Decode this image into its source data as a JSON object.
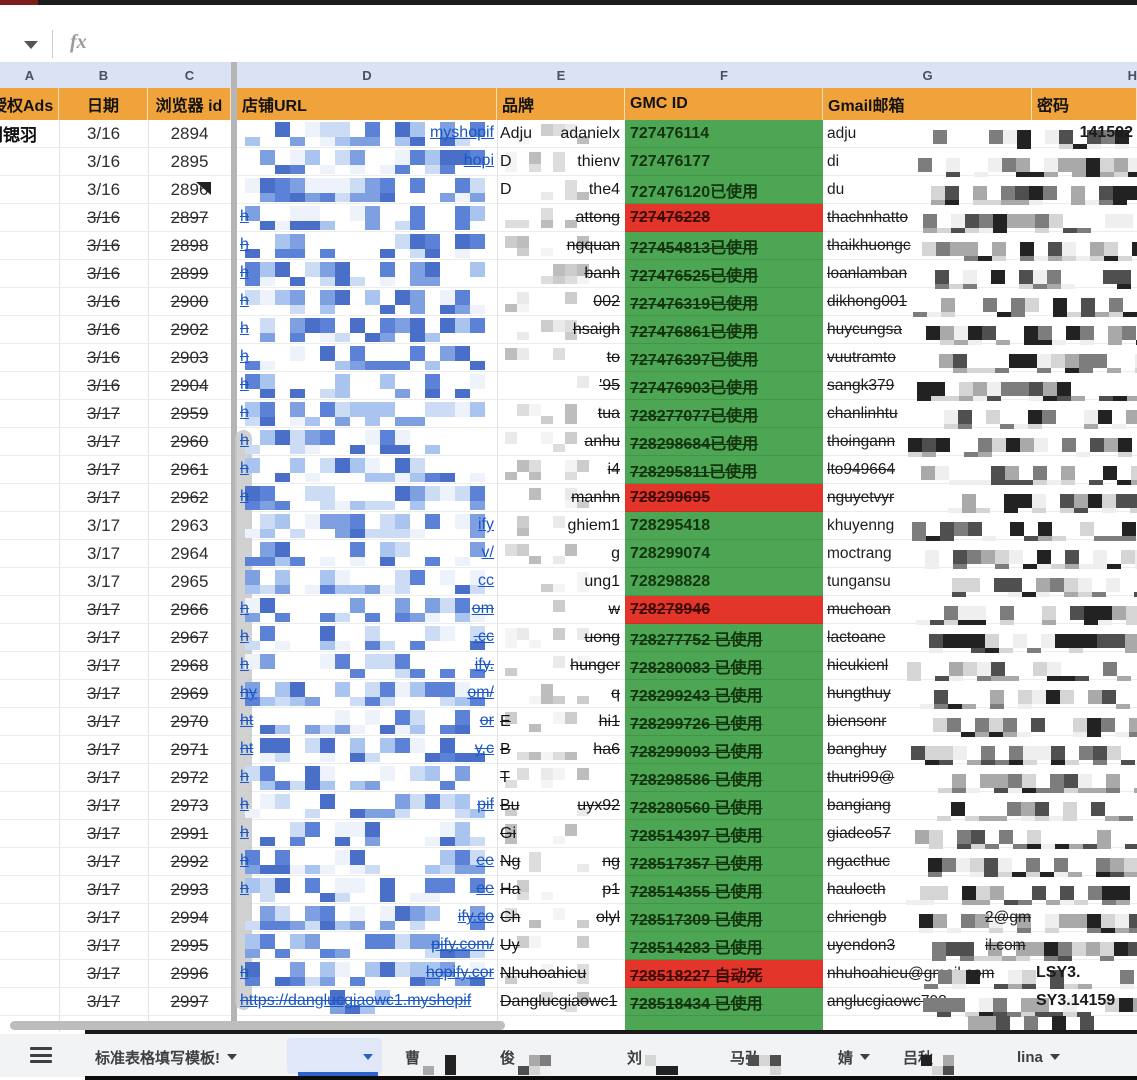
{
  "app": {
    "formula_bar": {
      "fx_label": "fx"
    }
  },
  "colors": {
    "header_orange": "#F1A33B",
    "gmc_green": "#4CA653",
    "gmc_red": "#E4352B",
    "link_blue": "#1a56c4",
    "column_header_blue": "#dbe2f4"
  },
  "sheet": {
    "column_letters": [
      "A",
      "B",
      "C",
      "D",
      "E",
      "F",
      "G",
      "H"
    ],
    "header_labels": [
      "授权Ads",
      "日期",
      "浏览器 id",
      "店铺URL",
      "品牌",
      "GMC ID",
      "Gmail邮箱",
      "密码"
    ],
    "owner_name": "刘锶羽",
    "rows": [
      {
        "date": "3/16",
        "browser_id": "2894",
        "struck": false,
        "comment": false,
        "url_left": "",
        "url_right": "myshopif",
        "url_full": "",
        "brand_left": "Adju",
        "brand_right": "adanielx",
        "gmc_text": "727476114",
        "gmc_state": "green",
        "gmc_struck": false,
        "gmail": "adju",
        "gmail_mid": "",
        "pwd": "141592"
      },
      {
        "date": "3/16",
        "browser_id": "2895",
        "struck": false,
        "comment": false,
        "url_left": "",
        "url_right": "hopi",
        "url_full": "",
        "brand_left": "D",
        "brand_right": "thienv",
        "gmc_text": "727476177",
        "gmc_state": "green",
        "gmc_struck": false,
        "gmail": "di",
        "gmail_mid": "",
        "pwd": ""
      },
      {
        "date": "3/16",
        "browser_id": "2896",
        "struck": false,
        "comment": true,
        "url_left": "",
        "url_right": "",
        "url_full": "",
        "brand_left": "D",
        "brand_right": "the4",
        "gmc_text": "727476120已使用",
        "gmc_state": "green",
        "gmc_struck": false,
        "gmail": "du",
        "gmail_mid": "",
        "pwd": ""
      },
      {
        "date": "3/16",
        "browser_id": "2897",
        "struck": true,
        "comment": false,
        "url_left": "h",
        "url_right": "",
        "url_full": "",
        "brand_left": "",
        "brand_right": "attong",
        "gmc_text": "727476228",
        "gmc_state": "red",
        "gmc_struck": true,
        "gmail": "thachnhatto",
        "gmail_mid": "",
        "pwd": ""
      },
      {
        "date": "3/16",
        "browser_id": "2898",
        "struck": true,
        "comment": false,
        "url_left": "h",
        "url_right": "",
        "url_full": "",
        "brand_left": "",
        "brand_right": "ngquan",
        "gmc_text": "727454813已使用",
        "gmc_state": "green",
        "gmc_struck": true,
        "gmail": "thaikhuongc",
        "gmail_mid": "",
        "pwd": ""
      },
      {
        "date": "3/16",
        "browser_id": "2899",
        "struck": true,
        "comment": false,
        "url_left": "h",
        "url_right": "",
        "url_full": "",
        "brand_left": "",
        "brand_right": "banh",
        "gmc_text": "727476525已使用",
        "gmc_state": "green",
        "gmc_struck": true,
        "gmail": "loanlamban",
        "gmail_mid": "",
        "pwd": ""
      },
      {
        "date": "3/16",
        "browser_id": "2900",
        "struck": true,
        "comment": false,
        "url_left": "h",
        "url_right": "",
        "url_full": "",
        "brand_left": "",
        "brand_right": "002",
        "gmc_text": "727476319已使用",
        "gmc_state": "green",
        "gmc_struck": true,
        "gmail": "dikhong001",
        "gmail_mid": "",
        "pwd": ""
      },
      {
        "date": "3/16",
        "browser_id": "2902",
        "struck": true,
        "comment": false,
        "url_left": "h",
        "url_right": "",
        "url_full": "",
        "brand_left": "",
        "brand_right": "hsaigh",
        "gmc_text": "727476861已使用",
        "gmc_state": "green",
        "gmc_struck": true,
        "gmail": "huycungsa",
        "gmail_mid": "",
        "pwd": ""
      },
      {
        "date": "3/16",
        "browser_id": "2903",
        "struck": true,
        "comment": false,
        "url_left": "h",
        "url_right": "",
        "url_full": "",
        "brand_left": "",
        "brand_right": "to",
        "gmc_text": "727476397已使用",
        "gmc_state": "green",
        "gmc_struck": true,
        "gmail": "vuutramto",
        "gmail_mid": "",
        "pwd": ""
      },
      {
        "date": "3/16",
        "browser_id": "2904",
        "struck": true,
        "comment": false,
        "url_left": "h",
        "url_right": "",
        "url_full": "",
        "brand_left": "",
        "brand_right": "'95",
        "gmc_text": "727476903已使用",
        "gmc_state": "green",
        "gmc_struck": true,
        "gmail": "sangk379",
        "gmail_mid": "",
        "pwd": ""
      },
      {
        "date": "3/17",
        "browser_id": "2959",
        "struck": true,
        "comment": false,
        "url_left": "h",
        "url_right": "",
        "url_full": "",
        "brand_left": "",
        "brand_right": "tua",
        "gmc_text": "728277077已使用",
        "gmc_state": "green",
        "gmc_struck": true,
        "gmail": "chanlinhtu",
        "gmail_mid": "",
        "pwd": ""
      },
      {
        "date": "3/17",
        "browser_id": "2960",
        "struck": true,
        "comment": false,
        "url_left": "h",
        "url_right": "",
        "url_full": "",
        "brand_left": "",
        "brand_right": "anhu",
        "gmc_text": "728298684已使用",
        "gmc_state": "green",
        "gmc_struck": true,
        "gmail": "thoingann",
        "gmail_mid": "",
        "pwd": ""
      },
      {
        "date": "3/17",
        "browser_id": "2961",
        "struck": true,
        "comment": false,
        "url_left": "h",
        "url_right": "",
        "url_full": "",
        "brand_left": "",
        "brand_right": "i4",
        "gmc_text": "728295811已使用",
        "gmc_state": "green",
        "gmc_struck": true,
        "gmail": "lto949664",
        "gmail_mid": "",
        "pwd": ""
      },
      {
        "date": "3/17",
        "browser_id": "2962",
        "struck": true,
        "comment": false,
        "url_left": "h",
        "url_right": "",
        "url_full": "",
        "brand_left": "",
        "brand_right": "manhn",
        "gmc_text": "728299695",
        "gmc_state": "red",
        "gmc_struck": true,
        "gmail": "nguyetvyr",
        "gmail_mid": "",
        "pwd": ""
      },
      {
        "date": "3/17",
        "browser_id": "2963",
        "struck": false,
        "comment": false,
        "url_left": "",
        "url_right": "ify",
        "url_full": "",
        "brand_left": "",
        "brand_right": "ghiem1",
        "gmc_text": "728295418",
        "gmc_state": "green",
        "gmc_struck": false,
        "gmail": "khuyenng",
        "gmail_mid": "",
        "pwd": ""
      },
      {
        "date": "3/17",
        "browser_id": "2964",
        "struck": false,
        "comment": false,
        "url_left": "",
        "url_right": "v/",
        "url_full": "",
        "brand_left": "",
        "brand_right": "g",
        "gmc_text": "728299074",
        "gmc_state": "green",
        "gmc_struck": false,
        "gmail": "moctrang",
        "gmail_mid": "",
        "pwd": ""
      },
      {
        "date": "3/17",
        "browser_id": "2965",
        "struck": false,
        "comment": false,
        "url_left": "",
        "url_right": "cc",
        "url_full": "",
        "brand_left": "",
        "brand_right": "ung1",
        "gmc_text": "728298828",
        "gmc_state": "green",
        "gmc_struck": false,
        "gmail": "tungansu",
        "gmail_mid": "",
        "pwd": ""
      },
      {
        "date": "3/17",
        "browser_id": "2966",
        "struck": true,
        "comment": false,
        "url_left": "h",
        "url_right": "om",
        "url_full": "",
        "brand_left": "",
        "brand_right": "w",
        "gmc_text": "728278946",
        "gmc_state": "red",
        "gmc_struck": true,
        "gmail": "muchoan",
        "gmail_mid": "",
        "pwd": ""
      },
      {
        "date": "3/17",
        "browser_id": "2967",
        "struck": true,
        "comment": false,
        "url_left": "h",
        "url_right": ".cc",
        "url_full": "",
        "brand_left": "",
        "brand_right": "uong",
        "gmc_text": "728277752 已使用",
        "gmc_state": "green",
        "gmc_struck": true,
        "gmail": "lactoane",
        "gmail_mid": "",
        "pwd": ""
      },
      {
        "date": "3/17",
        "browser_id": "2968",
        "struck": true,
        "comment": false,
        "url_left": "h",
        "url_right": "ify.",
        "url_full": "",
        "brand_left": "",
        "brand_right": "hunger",
        "gmc_text": "728280083 已使用",
        "gmc_state": "green",
        "gmc_struck": true,
        "gmail": "hieukienl",
        "gmail_mid": "",
        "pwd": ""
      },
      {
        "date": "3/17",
        "browser_id": "2969",
        "struck": true,
        "comment": false,
        "url_left": "hy",
        "url_right": "om/",
        "url_full": "",
        "brand_left": "",
        "brand_right": "q",
        "gmc_text": "728299243 已使用",
        "gmc_state": "green",
        "gmc_struck": true,
        "gmail": "hungthuy",
        "gmail_mid": "",
        "pwd": ""
      },
      {
        "date": "3/17",
        "browser_id": "2970",
        "struck": true,
        "comment": false,
        "url_left": "ht",
        "url_right": "or",
        "url_full": "",
        "brand_left": "E",
        "brand_right": "hi1",
        "gmc_text": "728299726 已使用",
        "gmc_state": "green",
        "gmc_struck": true,
        "gmail": "biensonr",
        "gmail_mid": "",
        "pwd": ""
      },
      {
        "date": "3/17",
        "browser_id": "2971",
        "struck": true,
        "comment": false,
        "url_left": "ht",
        "url_right": "y.c",
        "url_full": "",
        "brand_left": "B",
        "brand_right": "ha6",
        "gmc_text": "728299093 已使用",
        "gmc_state": "green",
        "gmc_struck": true,
        "gmail": "banghuy",
        "gmail_mid": "",
        "pwd": ""
      },
      {
        "date": "3/17",
        "browser_id": "2972",
        "struck": true,
        "comment": false,
        "url_left": "h",
        "url_right": "",
        "url_full": "",
        "brand_left": "T",
        "brand_right": "",
        "gmc_text": "728298586 已使用",
        "gmc_state": "green",
        "gmc_struck": true,
        "gmail": "thutri99@",
        "gmail_mid": "",
        "pwd": ""
      },
      {
        "date": "3/17",
        "browser_id": "2973",
        "struck": true,
        "comment": false,
        "url_left": "h",
        "url_right": "pif",
        "url_full": "",
        "brand_left": "Bu",
        "brand_right": "uyx92",
        "gmc_text": "728280560 已使用",
        "gmc_state": "green",
        "gmc_struck": true,
        "gmail": "bangiang",
        "gmail_mid": "",
        "pwd": ""
      },
      {
        "date": "3/17",
        "browser_id": "2991",
        "struck": true,
        "comment": false,
        "url_left": "h",
        "url_right": "",
        "url_full": "",
        "brand_left": "Gi",
        "brand_right": "",
        "gmc_text": "728514397 已使用",
        "gmc_state": "green",
        "gmc_struck": true,
        "gmail": "giadeo57",
        "gmail_mid": "",
        "pwd": ""
      },
      {
        "date": "3/17",
        "browser_id": "2992",
        "struck": true,
        "comment": false,
        "url_left": "h",
        "url_right": "ee",
        "url_full": "",
        "brand_left": "Ng",
        "brand_right": "ng",
        "gmc_text": "728517357 已使用",
        "gmc_state": "green",
        "gmc_struck": true,
        "gmail": "ngacthuc",
        "gmail_mid": "",
        "pwd": ""
      },
      {
        "date": "3/17",
        "browser_id": "2993",
        "struck": true,
        "comment": false,
        "url_left": "h",
        "url_right": "ee",
        "url_full": "",
        "brand_left": "Ha",
        "brand_right": "p1",
        "gmc_text": "728514355 已使用",
        "gmc_state": "green",
        "gmc_struck": true,
        "gmail": "haulocth",
        "gmail_mid": "",
        "pwd": ""
      },
      {
        "date": "3/17",
        "browser_id": "2994",
        "struck": true,
        "comment": false,
        "url_left": "",
        "url_right": "ify.co",
        "url_full": "",
        "brand_left": "Ch",
        "brand_right": "olyl",
        "gmc_text": "728517309 已使用",
        "gmc_state": "green",
        "gmc_struck": true,
        "gmail": "chriengb",
        "gmail_mid": "2@gm",
        "pwd": ""
      },
      {
        "date": "3/17",
        "browser_id": "2995",
        "struck": true,
        "comment": false,
        "url_left": "",
        "url_right": "pify.com/",
        "url_full": "",
        "brand_left": "Uy",
        "brand_right": "",
        "gmc_text": "728514283 已使用",
        "gmc_state": "green",
        "gmc_struck": true,
        "gmail": "uyendon3",
        "gmail_mid": "il.com",
        "pwd": ""
      },
      {
        "date": "3/17",
        "browser_id": "2996",
        "struck": true,
        "comment": false,
        "url_left": "h",
        "url_right": "hopify.cor",
        "url_full": "",
        "brand_left": "Nhuhoahieu",
        "brand_right": "",
        "gmc_text": "728518227 自动死",
        "gmc_state": "red",
        "gmc_struck": true,
        "gmail": "nhuhoahieu@gmail.com",
        "gmail_mid": "",
        "pwd": "LSY3."
      },
      {
        "date": "3/17",
        "browser_id": "2997",
        "struck": true,
        "comment": false,
        "url_left": "",
        "url_right": "",
        "url_full": "https://danglucgiaowc1.myshopif",
        "brand_left": "Danglucgiaowc1",
        "brand_right": "",
        "gmc_text": "728518434 已使用",
        "gmc_state": "green",
        "gmc_struck": true,
        "gmail": "anglucgiaowc798",
        "gmail_mid": "",
        "pwd": "SY3.14159"
      }
    ],
    "tabs": [
      {
        "label": "标准表格填写模板!",
        "caret": true,
        "blur": false,
        "active": false
      },
      {
        "label": "",
        "caret": false,
        "blur": true,
        "active": true
      },
      {
        "label": "曹",
        "caret": false,
        "blur": true,
        "active": false
      },
      {
        "label": "俊",
        "caret": false,
        "blur": true,
        "active": false
      },
      {
        "label": "刘",
        "caret": false,
        "blur": true,
        "active": false
      },
      {
        "label": "马弘",
        "caret": false,
        "blur": true,
        "active": false
      },
      {
        "label": "婧",
        "caret": true,
        "blur": false,
        "active": false
      },
      {
        "label": "吕秋",
        "caret": false,
        "blur": true,
        "active": false
      },
      {
        "label": "lina",
        "caret": true,
        "blur": false,
        "active": false
      }
    ]
  }
}
